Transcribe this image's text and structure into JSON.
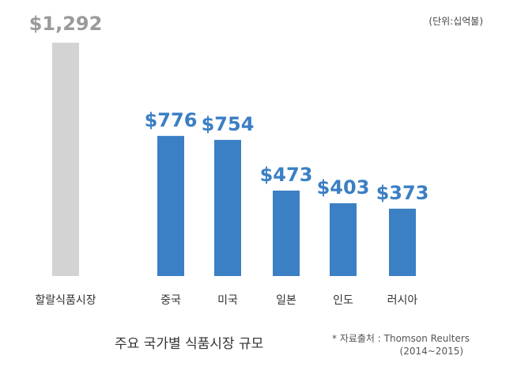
{
  "unit_note": "(단위:십억불)",
  "caption": "주요 국가별 식품시장 규모",
  "source": {
    "line1": "* 자료출처 : Thomson Reulters",
    "line2": "(2014~2015)"
  },
  "colors": {
    "halal_bar": "#d3d3d3",
    "halal_label": "#9a9a9a",
    "country_bar": "#3b7fc4",
    "country_label": "#3b7fc4"
  },
  "chart_data": {
    "type": "bar",
    "categories": [
      "할랄식품시장",
      "중국",
      "미국",
      "일본",
      "인도",
      "러시아"
    ],
    "values": [
      1292,
      776,
      754,
      473,
      403,
      373
    ],
    "value_labels": [
      "$1,292",
      "$776",
      "$754",
      "$473",
      "$403",
      "$373"
    ],
    "ylim": [
      0,
      1292
    ],
    "grid": false
  }
}
